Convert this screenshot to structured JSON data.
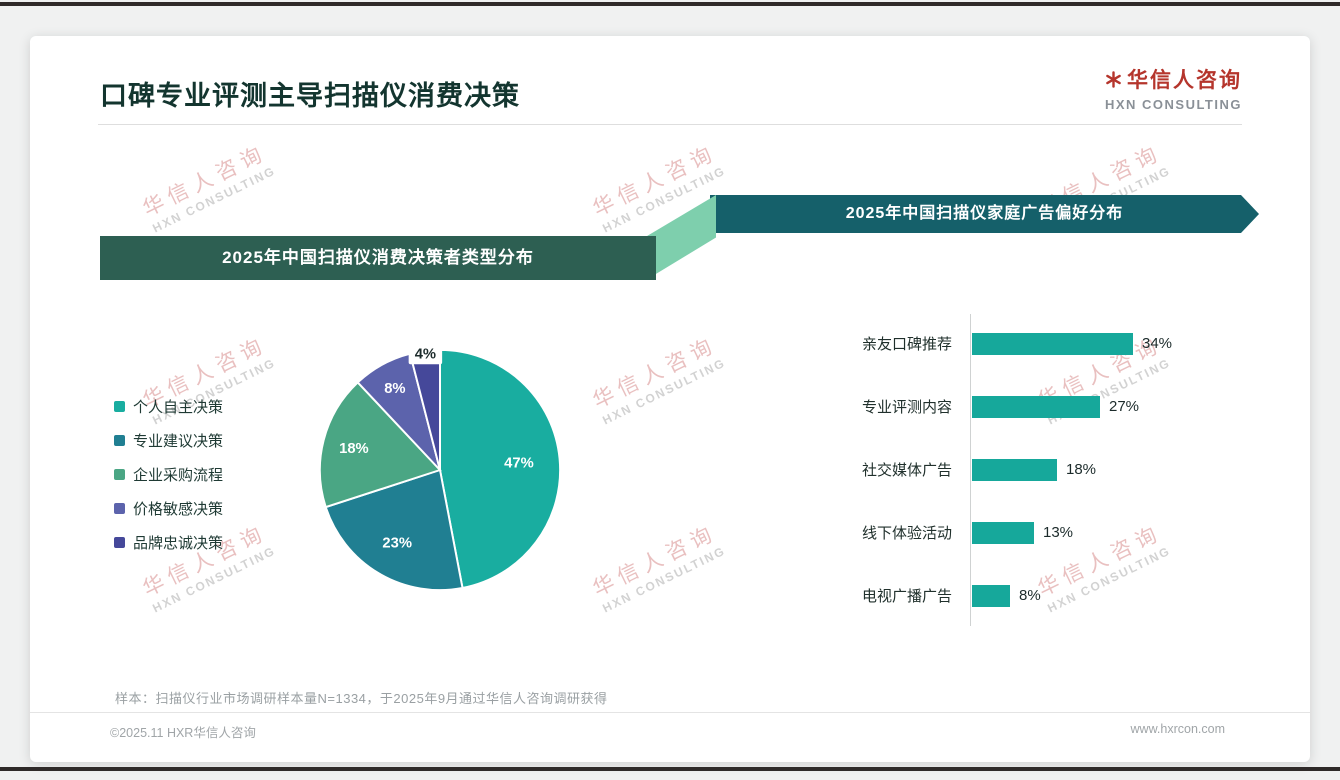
{
  "page": {
    "title": "口碑专业评测主导扫描仪消费决策",
    "logo": {
      "cn": "华信人咨询",
      "en": "HXN CONSULTING"
    },
    "watermark": {
      "cn": "华信人咨询",
      "en": "HXN CONSULTING"
    },
    "note": "样本：扫描仪行业市场调研样本量N=1334，于2025年9月通过华信人咨询调研获得",
    "footer": {
      "left": "©2025.11 HXR华信人咨询",
      "right": "www.hxrcon.com"
    }
  },
  "colors": {
    "accent_red": "#b5352c",
    "banner_left_bg": "#2d5f52",
    "banner_right_bg": "#15606a",
    "connector": "#7ecfad",
    "bar": "#16a89b"
  },
  "chart_data": [
    {
      "type": "pie",
      "title": "2025年中国扫描仪消费决策者类型分布",
      "legend_position": "left",
      "labels": [
        "个人自主决策",
        "专业建议决策",
        "企业采购流程",
        "价格敏感决策",
        "品牌忠诚决策"
      ],
      "values": [
        47,
        23,
        18,
        8,
        4
      ],
      "value_labels": [
        "47%",
        "23%",
        "18%",
        "8%",
        "4%"
      ],
      "colors": [
        "#19ada0",
        "#207f92",
        "#4aa684",
        "#5c63ac",
        "#45489a"
      ]
    },
    {
      "type": "bar",
      "orientation": "horizontal",
      "title": "2025年中国扫描仪家庭广告偏好分布",
      "categories": [
        "亲友口碑推荐",
        "专业评测内容",
        "社交媒体广告",
        "线下体验活动",
        "电视广播广告"
      ],
      "values": [
        34,
        27,
        18,
        13,
        8
      ],
      "value_labels": [
        "34%",
        "27%",
        "18%",
        "13%",
        "8%"
      ],
      "bar_color": "#16a89b",
      "xlim": [
        0,
        38
      ]
    }
  ]
}
